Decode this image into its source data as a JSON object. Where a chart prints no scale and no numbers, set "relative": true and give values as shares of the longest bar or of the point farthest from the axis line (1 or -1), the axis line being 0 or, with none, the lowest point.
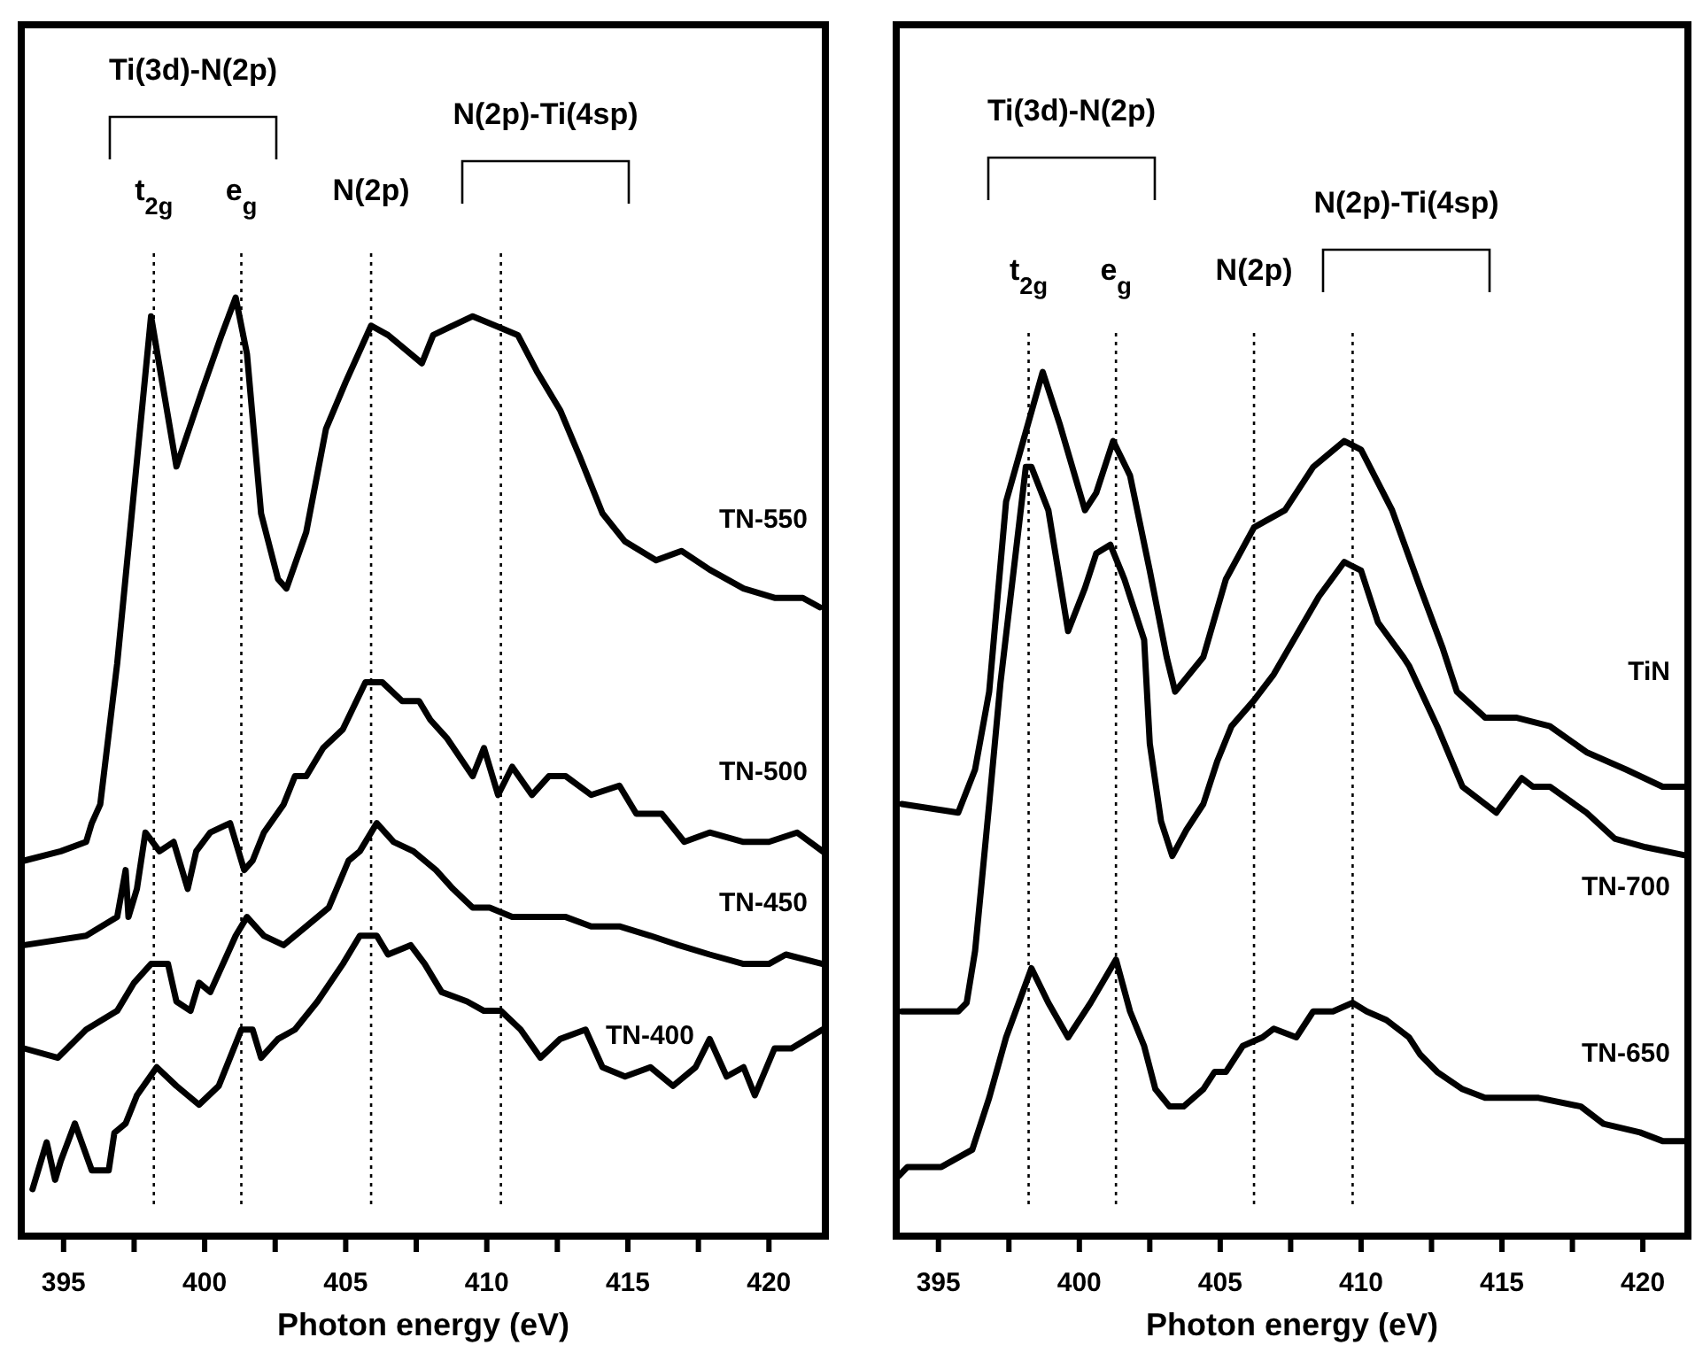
{
  "chart_data": [
    {
      "type": "line",
      "relative": true,
      "xlabel": "Photon energy (eV)",
      "xlim": [
        393.5,
        422
      ],
      "xticks": [
        395,
        {
          "value": 397.5,
          "label": null
        },
        400,
        {
          "value": 402.5,
          "label": null
        },
        405,
        {
          "value": 407.5,
          "label": null
        },
        410,
        {
          "value": 412.5,
          "label": null
        },
        415,
        {
          "value": 417.5,
          "label": null
        },
        420
      ],
      "ref_lines": [
        {
          "axis": "x",
          "value": 398.2,
          "label": "t$_{2g}$",
          "line_style": "dotted"
        },
        {
          "axis": "x",
          "value": 401.3,
          "label": "e$_{g}$",
          "line_style": "dotted"
        },
        {
          "axis": "x",
          "value": 405.9,
          "label": "N(2p)",
          "line_style": "dotted"
        },
        {
          "axis": "x",
          "value": 410.5,
          "label": null,
          "line_style": "dotted"
        }
      ],
      "annotations": [
        "Ti(3d)-N(2p)",
        "N(2p)-Ti(4sp)"
      ],
      "series": [
        {
          "name": "TN-550",
          "color": "#000000",
          "x": [
            393.6,
            394.9,
            395.8,
            396.0,
            396.3,
            396.7,
            396.9,
            398.1,
            399.0,
            399.9,
            400.6,
            401.1,
            401.5,
            402.0,
            402.6,
            402.9,
            403.6,
            404.3,
            405.0,
            405.9,
            406.5,
            407.7,
            408.1,
            409.5,
            410.3,
            411.1,
            411.8,
            412.6,
            413.3,
            414.1,
            414.9,
            416.0,
            416.9,
            417.9,
            419.1,
            420.2,
            421.2,
            421.8
          ],
          "values": [
            0.4,
            0.41,
            0.42,
            0.44,
            0.46,
            0.56,
            0.61,
            0.98,
            0.82,
            0.9,
            0.96,
            1.0,
            0.94,
            0.77,
            0.7,
            0.69,
            0.75,
            0.86,
            0.91,
            0.97,
            0.96,
            0.93,
            0.96,
            0.98,
            0.97,
            0.96,
            0.92,
            0.88,
            0.83,
            0.77,
            0.74,
            0.72,
            0.73,
            0.71,
            0.69,
            0.68,
            0.68,
            0.67
          ]
        },
        {
          "name": "TN-500",
          "color": "#000000",
          "x": [
            393.6,
            395.8,
            396.9,
            397.2,
            397.3,
            397.6,
            397.9,
            398.4,
            398.9,
            399.4,
            399.7,
            400.2,
            400.9,
            401.4,
            401.7,
            402.1,
            402.8,
            403.2,
            403.6,
            404.2,
            404.9,
            405.7,
            406.3,
            407.0,
            407.6,
            408.0,
            408.6,
            409.5,
            409.9,
            410.4,
            410.9,
            411.6,
            412.2,
            412.8,
            413.7,
            414.7,
            415.3,
            416.2,
            417.0,
            417.9,
            419.1,
            420.0,
            421.0,
            421.9
          ],
          "values": [
            0.31,
            0.32,
            0.34,
            0.39,
            0.34,
            0.37,
            0.43,
            0.41,
            0.42,
            0.37,
            0.41,
            0.43,
            0.44,
            0.39,
            0.4,
            0.43,
            0.46,
            0.49,
            0.49,
            0.52,
            0.54,
            0.59,
            0.59,
            0.57,
            0.57,
            0.55,
            0.53,
            0.49,
            0.52,
            0.47,
            0.5,
            0.47,
            0.49,
            0.49,
            0.47,
            0.48,
            0.45,
            0.45,
            0.42,
            0.43,
            0.42,
            0.42,
            0.43,
            0.41
          ]
        },
        {
          "name": "TN-450",
          "color": "#000000",
          "x": [
            393.6,
            394.8,
            395.8,
            396.9,
            397.5,
            398.1,
            398.7,
            399.0,
            399.5,
            399.8,
            400.2,
            400.8,
            401.1,
            401.5,
            402.1,
            402.8,
            403.6,
            404.4,
            405.1,
            405.5,
            406.1,
            406.7,
            407.4,
            408.2,
            408.8,
            409.5,
            410.1,
            410.9,
            412.0,
            412.8,
            413.7,
            414.7,
            415.8,
            416.8,
            417.9,
            419.1,
            420.0,
            420.6,
            421.9
          ],
          "values": [
            0.2,
            0.19,
            0.22,
            0.24,
            0.27,
            0.29,
            0.29,
            0.25,
            0.24,
            0.27,
            0.26,
            0.3,
            0.32,
            0.34,
            0.32,
            0.31,
            0.33,
            0.35,
            0.4,
            0.41,
            0.44,
            0.42,
            0.41,
            0.39,
            0.37,
            0.35,
            0.35,
            0.34,
            0.34,
            0.34,
            0.33,
            0.33,
            0.32,
            0.31,
            0.3,
            0.29,
            0.29,
            0.3,
            0.29
          ]
        },
        {
          "name": "TN-400",
          "color": "#000000",
          "x": [
            393.9,
            394.4,
            394.7,
            394.9,
            395.4,
            396.0,
            396.6,
            396.8,
            397.2,
            397.6,
            398.3,
            399.0,
            399.8,
            400.5,
            400.9,
            401.3,
            401.7,
            402.0,
            402.6,
            403.2,
            404.0,
            404.9,
            405.5,
            406.1,
            406.5,
            407.3,
            407.8,
            408.4,
            409.3,
            409.9,
            410.5,
            411.2,
            411.9,
            412.6,
            413.5,
            414.1,
            414.9,
            415.8,
            416.6,
            417.4,
            417.9,
            418.5,
            419.1,
            419.5,
            420.2,
            420.8,
            421.9
          ],
          "values": [
            0.05,
            0.1,
            0.06,
            0.08,
            0.12,
            0.07,
            0.07,
            0.11,
            0.12,
            0.15,
            0.18,
            0.16,
            0.14,
            0.16,
            0.19,
            0.22,
            0.22,
            0.19,
            0.21,
            0.22,
            0.25,
            0.29,
            0.32,
            0.32,
            0.3,
            0.31,
            0.29,
            0.26,
            0.25,
            0.24,
            0.24,
            0.22,
            0.19,
            0.21,
            0.22,
            0.18,
            0.17,
            0.18,
            0.16,
            0.18,
            0.21,
            0.17,
            0.18,
            0.15,
            0.2,
            0.2,
            0.22
          ]
        }
      ]
    },
    {
      "type": "line",
      "relative": true,
      "xlabel": "Photon energy (eV)",
      "xlim": [
        393.5,
        421.6
      ],
      "xticks": [
        395,
        {
          "value": 397.5,
          "label": null
        },
        400,
        {
          "value": 402.5,
          "label": null
        },
        405,
        {
          "value": 407.5,
          "label": null
        },
        410,
        {
          "value": 412.5,
          "label": null
        },
        415,
        {
          "value": 417.5,
          "label": null
        },
        420
      ],
      "ref_lines": [
        {
          "axis": "x",
          "value": 398.2,
          "label": "t$_{2g}$",
          "line_style": "dotted"
        },
        {
          "axis": "x",
          "value": 401.3,
          "label": "e$_{g}$",
          "line_style": "dotted"
        },
        {
          "axis": "x",
          "value": 406.2,
          "label": "N(2p)",
          "line_style": "dotted"
        },
        {
          "axis": "x",
          "value": 409.7,
          "label": null,
          "line_style": "dotted"
        }
      ],
      "annotations": [
        "Ti(3d)-N(2p)",
        "N(2p)-Ti(4sp)"
      ],
      "series": [
        {
          "name": "TiN",
          "color": "#000000",
          "x": [
            393.7,
            395.7,
            396.3,
            396.8,
            397.4,
            398.7,
            399.3,
            400.2,
            400.6,
            401.2,
            401.8,
            402.5,
            403.1,
            403.4,
            404.4,
            405.2,
            406.2,
            407.3,
            408.3,
            409.4,
            410.0,
            411.1,
            412.1,
            412.9,
            413.4,
            414.4,
            415.5,
            416.7,
            418.0,
            419.4,
            420.7,
            421.6
          ],
          "values": [
            0.5,
            0.49,
            0.54,
            0.63,
            0.85,
            1.0,
            0.94,
            0.84,
            0.86,
            0.92,
            0.88,
            0.77,
            0.67,
            0.63,
            0.67,
            0.76,
            0.82,
            0.84,
            0.89,
            0.92,
            0.91,
            0.84,
            0.75,
            0.68,
            0.63,
            0.6,
            0.6,
            0.59,
            0.56,
            0.54,
            0.52,
            0.52
          ]
        },
        {
          "name": "TN-700",
          "color": "#000000",
          "x": [
            393.7,
            394.5,
            395.7,
            396.0,
            396.3,
            396.8,
            397.2,
            398.1,
            398.3,
            398.9,
            399.1,
            399.6,
            400.2,
            400.6,
            401.1,
            401.6,
            402.3,
            402.5,
            402.9,
            403.3,
            403.8,
            404.4,
            404.9,
            405.4,
            406.2,
            406.9,
            408.5,
            409.4,
            410.0,
            410.6,
            411.5,
            411.7,
            412.7,
            413.6,
            414.8,
            415.7,
            416.1,
            416.7,
            418.0,
            419.0,
            420.1,
            421.6
          ],
          "values": [
            0.26,
            0.26,
            0.26,
            0.27,
            0.33,
            0.5,
            0.64,
            0.89,
            0.89,
            0.84,
            0.8,
            0.7,
            0.75,
            0.79,
            0.8,
            0.76,
            0.69,
            0.57,
            0.48,
            0.44,
            0.47,
            0.5,
            0.55,
            0.59,
            0.62,
            0.65,
            0.74,
            0.78,
            0.77,
            0.71,
            0.67,
            0.66,
            0.59,
            0.52,
            0.49,
            0.53,
            0.52,
            0.52,
            0.49,
            0.46,
            0.45,
            0.44
          ]
        },
        {
          "name": "TN-650",
          "color": "#000000",
          "x": [
            393.6,
            393.9,
            395.1,
            396.2,
            396.8,
            397.4,
            398.3,
            398.9,
            399.6,
            400.4,
            401.3,
            401.8,
            402.3,
            402.7,
            403.2,
            403.7,
            404.4,
            404.8,
            405.2,
            405.8,
            406.5,
            406.9,
            407.7,
            408.3,
            409.0,
            409.7,
            410.2,
            410.9,
            411.7,
            412.1,
            412.7,
            413.6,
            414.4,
            415.2,
            416.3,
            417.8,
            418.6,
            419.9,
            420.7,
            421.6
          ],
          "values": [
            0.07,
            0.08,
            0.08,
            0.1,
            0.16,
            0.23,
            0.31,
            0.27,
            0.23,
            0.27,
            0.32,
            0.26,
            0.22,
            0.17,
            0.15,
            0.15,
            0.17,
            0.19,
            0.19,
            0.22,
            0.23,
            0.24,
            0.23,
            0.26,
            0.26,
            0.27,
            0.26,
            0.25,
            0.23,
            0.21,
            0.19,
            0.17,
            0.16,
            0.16,
            0.16,
            0.15,
            0.13,
            0.12,
            0.11,
            0.11
          ]
        }
      ]
    }
  ]
}
